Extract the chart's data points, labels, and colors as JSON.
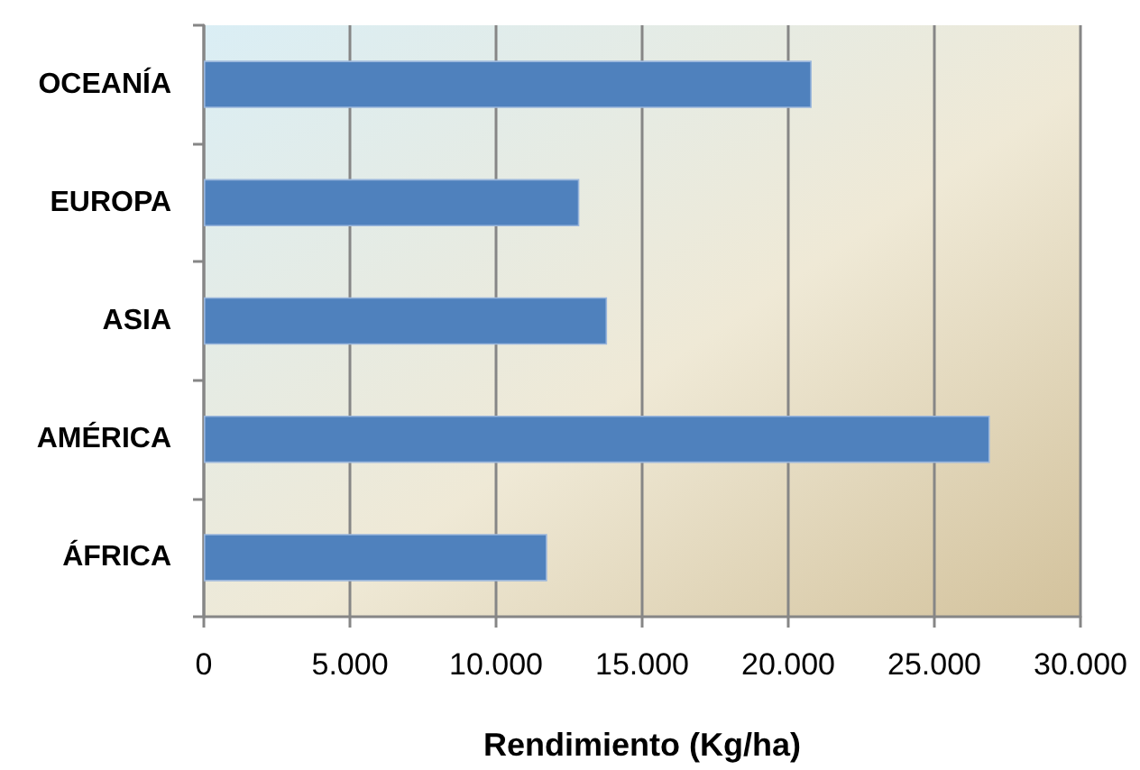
{
  "chart_data": {
    "type": "bar",
    "orientation": "horizontal",
    "xlabel": "Rendimiento (Kg/ha)",
    "categories": [
      "OCEANÍA",
      "EUROPA",
      "ASIA",
      "AMÉRICA",
      "ÁFRICA"
    ],
    "values": [
      20800,
      12850,
      13800,
      26900,
      11750
    ],
    "color": "#4f81bd",
    "xlim": [
      0,
      30000
    ],
    "xticks": [
      0,
      {
        "value": 5000,
        "label": "5.000"
      },
      {
        "value": 10000,
        "label": "10.000"
      },
      {
        "value": 15000,
        "label": "15.000"
      },
      {
        "value": 20000,
        "label": "20.000"
      },
      {
        "value": 25000,
        "label": "25.000"
      },
      {
        "value": 30000,
        "label": "30.000"
      }
    ],
    "grid": "x"
  }
}
